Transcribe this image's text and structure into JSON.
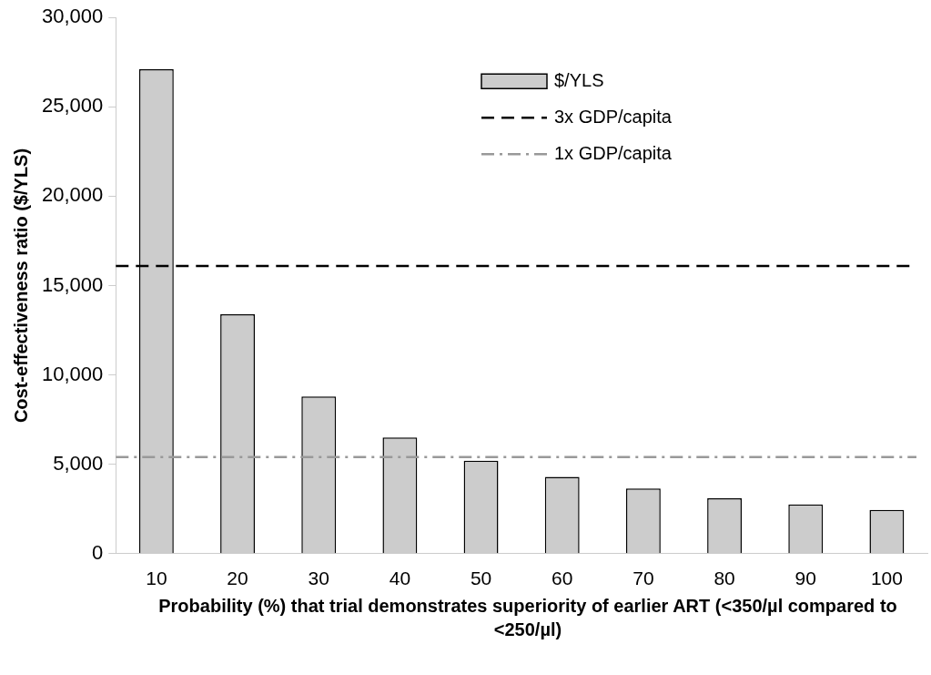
{
  "chart_data": {
    "type": "bar",
    "xlabel": "Probability (%) that trial demonstrates superiority of earlier ART (<350/µl compared to <250/µl)",
    "ylabel": "Cost-effectiveness ratio ($/YLS)",
    "categories": [
      "10",
      "20",
      "30",
      "40",
      "50",
      "60",
      "70",
      "80",
      "90",
      "100"
    ],
    "series": [
      {
        "name": "$/YLS",
        "color": "#cccccc",
        "values": [
          27100,
          13400,
          8800,
          6500,
          5200,
          4300,
          3650,
          3100,
          2750,
          2450
        ]
      }
    ],
    "ylim": [
      0,
      30000
    ],
    "yticks": [
      {
        "value": 0,
        "label": "0"
      },
      {
        "value": 5000,
        "label": "5,000"
      },
      {
        "value": 10000,
        "label": "10,000"
      },
      {
        "value": 15000,
        "label": "15,000"
      },
      {
        "value": 20000,
        "label": "20,000"
      },
      {
        "value": 25000,
        "label": "25,000"
      },
      {
        "value": 30000,
        "label": "30,000"
      }
    ],
    "ref_lines": [
      {
        "axis": "y",
        "value": 16100,
        "label": "3x GDP/capita",
        "color": "#000000",
        "line_style": "dashed"
      },
      {
        "axis": "y",
        "value": 5400,
        "label": "1x GDP/capita",
        "color": "#999999",
        "line_style": "dashdot"
      }
    ],
    "grid": false,
    "legend": "top right"
  }
}
